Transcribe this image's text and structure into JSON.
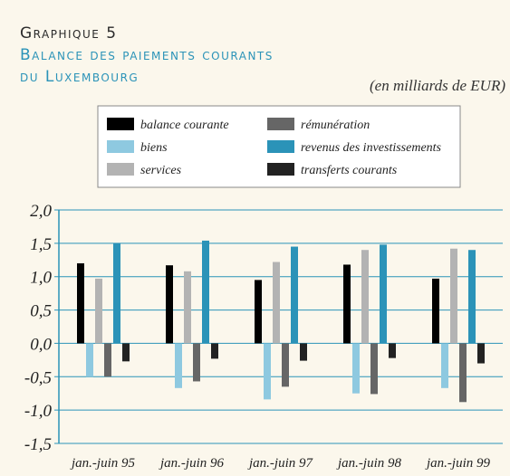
{
  "chart_data": {
    "type": "bar",
    "title": "Graphique 5",
    "subtitle": [
      "Balance des paiements courants",
      "du Luxembourg"
    ],
    "units": "(en milliards de EUR)",
    "categories": [
      "jan.-juin 95",
      "jan.-juin 96",
      "jan.-juin 97",
      "jan.-juin 98",
      "jan.-juin 99"
    ],
    "series": [
      {
        "name": "balance courante",
        "color": "#000000",
        "values": [
          1.2,
          1.17,
          0.95,
          1.18,
          0.97
        ]
      },
      {
        "name": "biens",
        "color": "#8ec9e0",
        "values": [
          -0.5,
          -0.67,
          -0.84,
          -0.75,
          -0.67
        ]
      },
      {
        "name": "services",
        "color": "#b3b3b3",
        "values": [
          0.97,
          1.08,
          1.22,
          1.4,
          1.42
        ]
      },
      {
        "name": "rémunération",
        "color": "#666666",
        "values": [
          -0.5,
          -0.57,
          -0.65,
          -0.76,
          -0.88
        ]
      },
      {
        "name": "revenus des investissements",
        "color": "#2b93b8",
        "values": [
          1.5,
          1.54,
          1.45,
          1.48,
          1.4
        ]
      },
      {
        "name": "transferts courants",
        "color": "#222222",
        "values": [
          -0.27,
          -0.23,
          -0.26,
          -0.22,
          -0.3
        ]
      }
    ],
    "ylim": [
      -1.5,
      2.0
    ],
    "yticks": [
      {
        "value": -1.5,
        "label": "-1,5"
      },
      {
        "value": -1.0,
        "label": "-1,0"
      },
      {
        "value": -0.5,
        "label": "-0,5"
      },
      {
        "value": 0,
        "label": "0,0"
      },
      {
        "value": 0.5,
        "label": "0,5"
      },
      {
        "value": 1.0,
        "label": "1,0"
      },
      {
        "value": 1.5,
        "label": "1,5"
      },
      {
        "value": 2.0,
        "label": "2,0"
      }
    ],
    "grid": true
  }
}
